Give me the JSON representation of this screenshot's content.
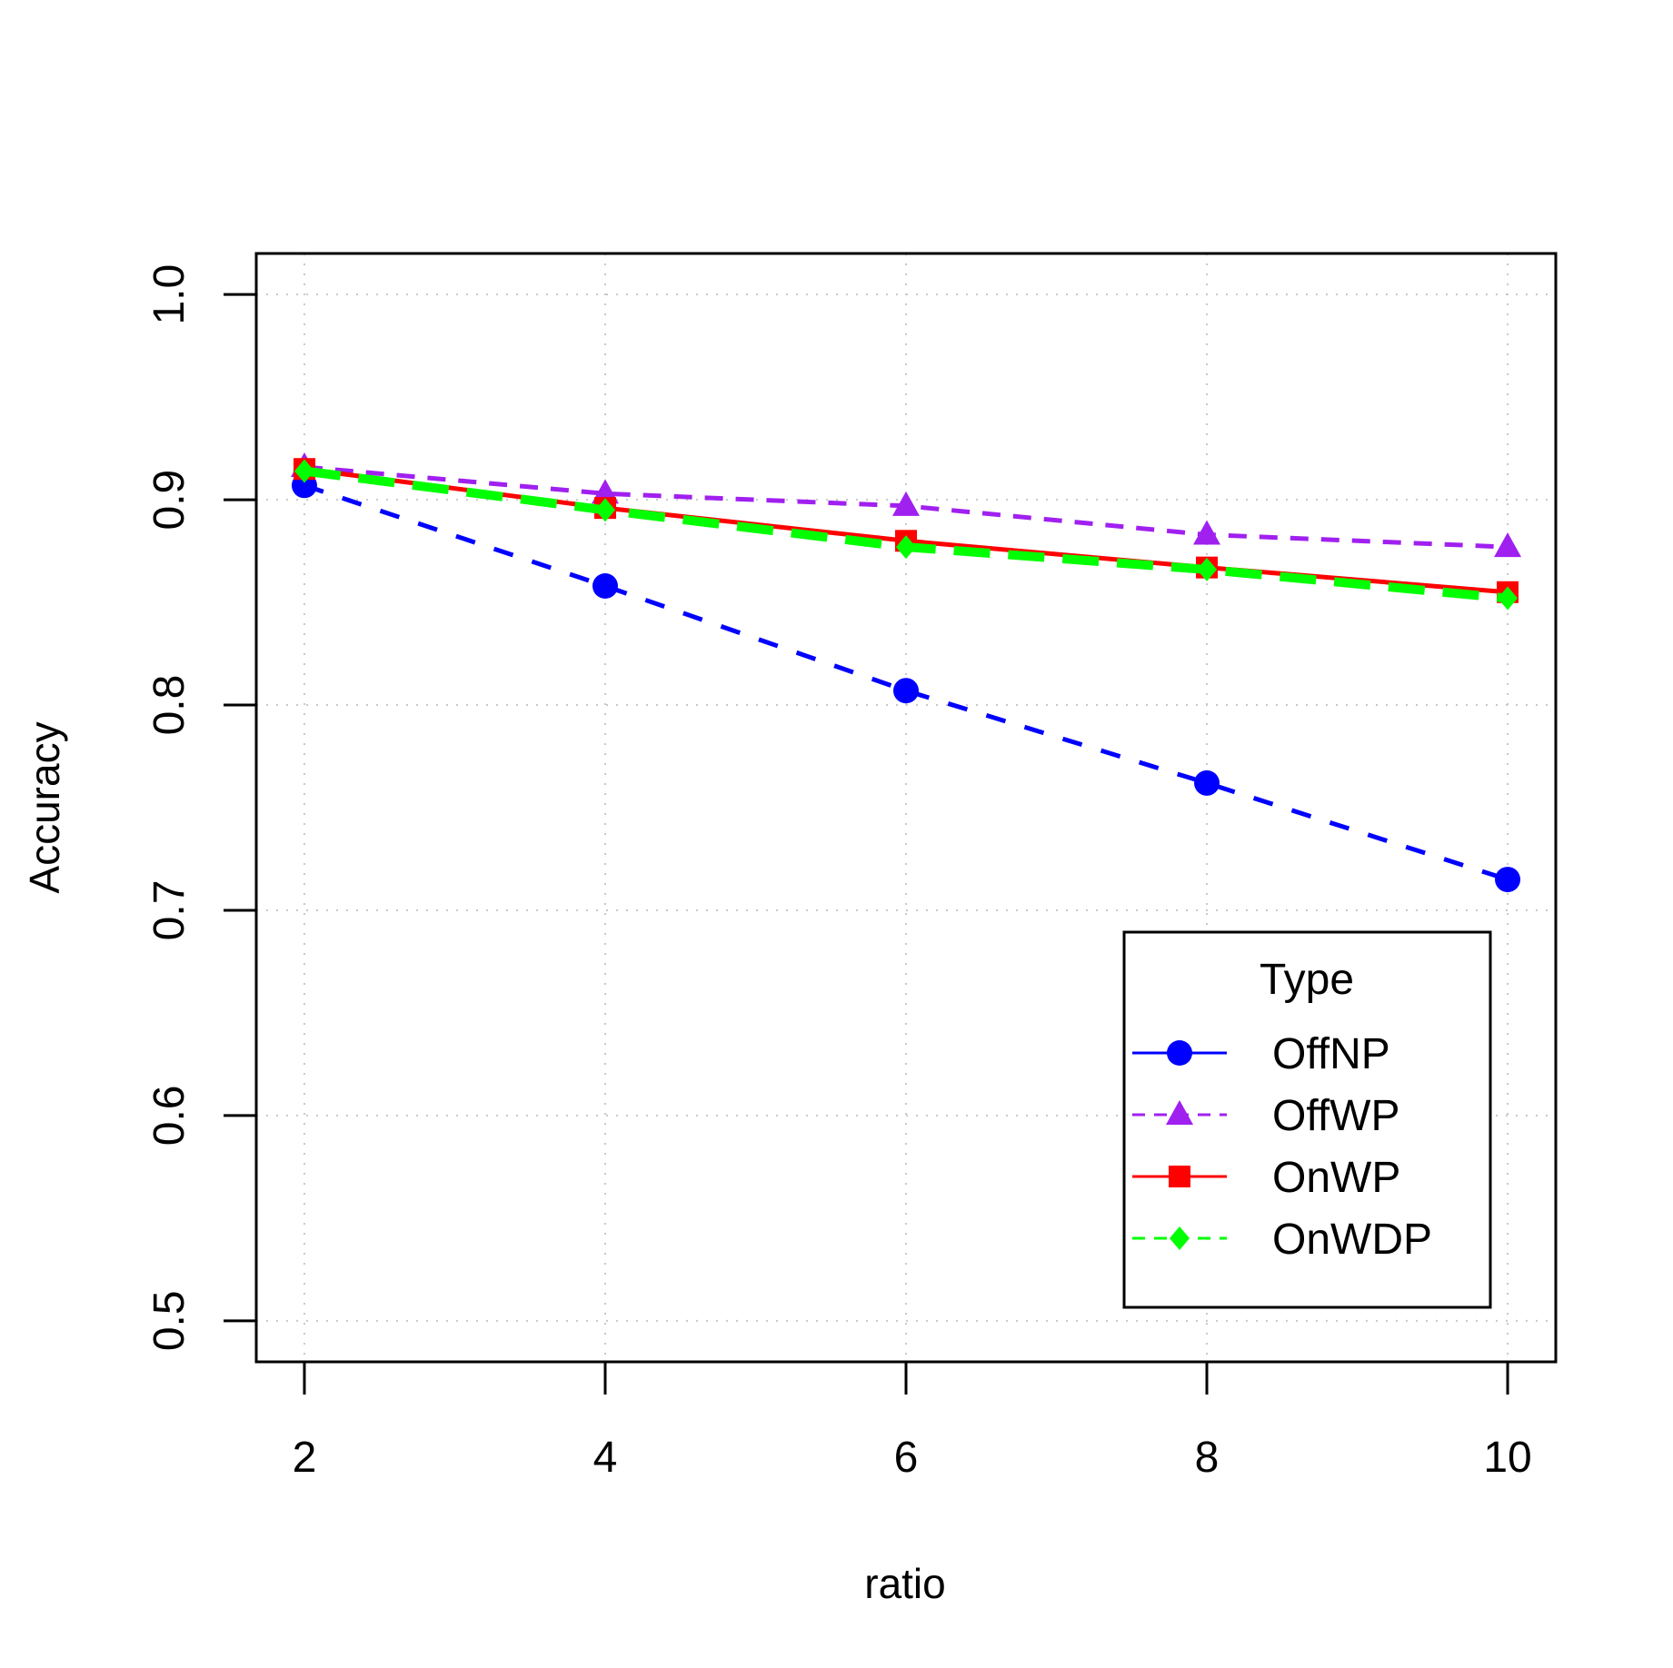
{
  "chart_data": {
    "type": "line",
    "xlabel": "ratio",
    "ylabel": "Accuracy",
    "x": [
      2,
      4,
      6,
      8,
      10
    ],
    "x_ticks": [
      "2",
      "4",
      "6",
      "8",
      "10"
    ],
    "y_ticks": [
      "0.5",
      "0.6",
      "0.7",
      "0.8",
      "0.9",
      "1.0"
    ],
    "xlim": [
      1.68,
      10.32
    ],
    "ylim": [
      0.48,
      1.02
    ],
    "grid": true,
    "legend": {
      "title": "Type",
      "position": "bottom-right"
    },
    "series": [
      {
        "name": "OffNP",
        "values": [
          0.907,
          0.858,
          0.807,
          0.762,
          0.715
        ],
        "color": "#0000ff",
        "marker": "circle",
        "line_style": "dashed"
      },
      {
        "name": "OffWP",
        "values": [
          0.916,
          0.903,
          0.897,
          0.883,
          0.877
        ],
        "color": "#a020f0",
        "marker": "triangle",
        "line_style": "dashed"
      },
      {
        "name": "OnWP",
        "values": [
          0.915,
          0.896,
          0.88,
          0.867,
          0.855
        ],
        "color": "#ff0000",
        "marker": "square",
        "line_style": "solid"
      },
      {
        "name": "OnWDP",
        "values": [
          0.914,
          0.895,
          0.877,
          0.866,
          0.852
        ],
        "color": "#00ff00",
        "marker": "diamond",
        "line_style": "dashed"
      }
    ]
  }
}
